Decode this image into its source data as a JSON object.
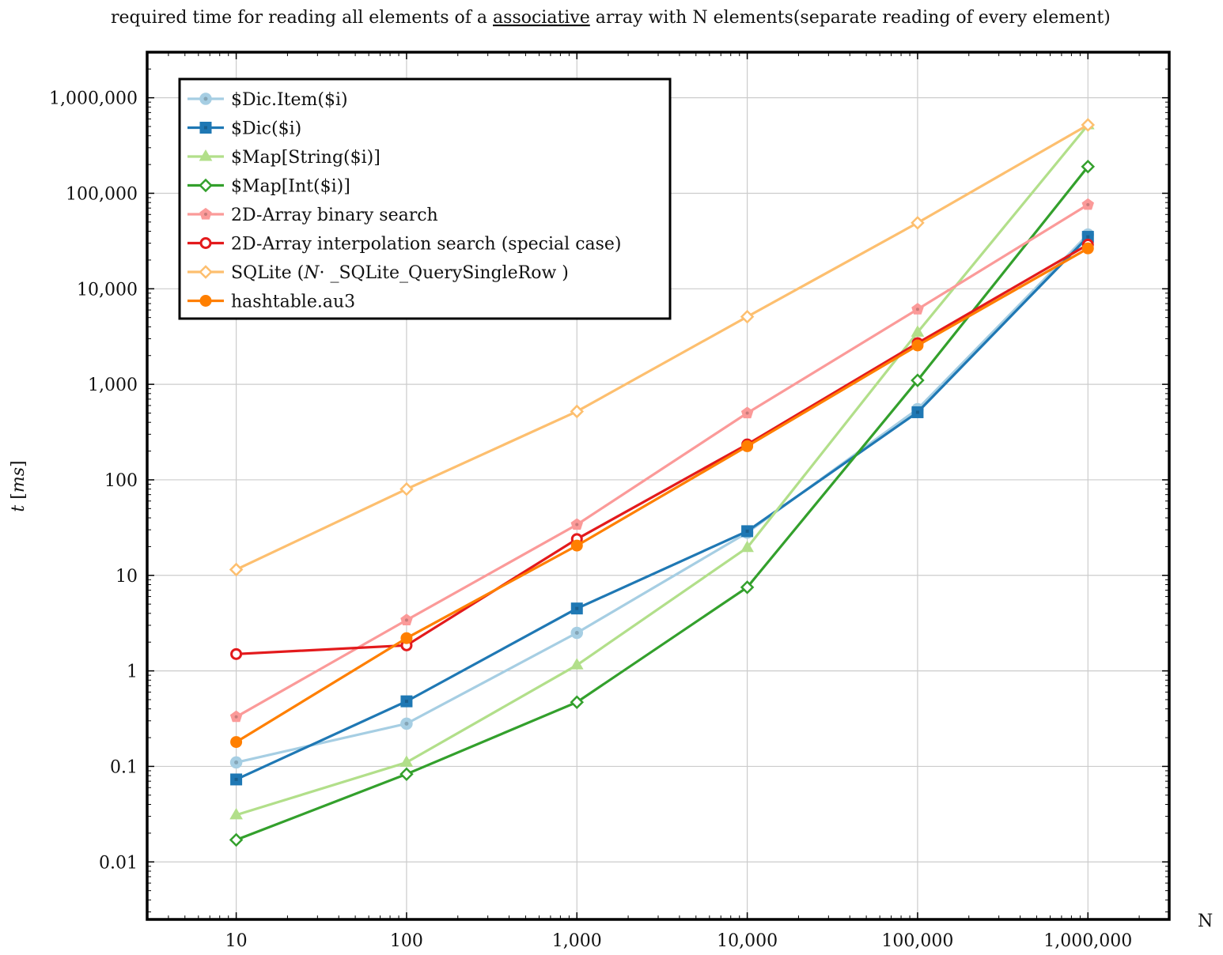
{
  "chart_data": {
    "type": "line",
    "title": {
      "before": "required time for reading all elements of a ",
      "underlined": "associative",
      "after": " array with N elements(separate reading of every element)"
    },
    "xlabel": "N",
    "ylabel_italic_t": "t",
    "ylabel_open": " [",
    "ylabel_italic_ms": "ms",
    "ylabel_close": "]",
    "x_scale": "log",
    "y_scale": "log",
    "xlim": [
      3,
      3000000
    ],
    "ylim": [
      0.0025,
      3000000
    ],
    "x_ticks": [
      10,
      100,
      1000,
      10000,
      100000,
      1000000
    ],
    "x_tick_labels": [
      "10",
      "100",
      "1,000",
      "10,000",
      "100,000",
      "1,000,000"
    ],
    "y_ticks": [
      0.01,
      0.1,
      1,
      10,
      100,
      1000,
      10000,
      100000,
      1000000
    ],
    "y_tick_labels": [
      "0.01",
      "0.1",
      "1",
      "10",
      "100",
      "1,000",
      "10,000",
      "100,000",
      "1,000,000"
    ],
    "grid": true,
    "legend_position": "top-left",
    "series": [
      {
        "name": "$Dic.Item($i)",
        "color": "#a6cee3",
        "marker": "circle-dot",
        "x": [
          10,
          100,
          1000,
          10000,
          100000,
          1000000
        ],
        "y": [
          0.11,
          0.28,
          2.5,
          28,
          550,
          37000
        ]
      },
      {
        "name": "$Dic($i)",
        "color": "#1f78b4",
        "marker": "square",
        "x": [
          10,
          100,
          1000,
          10000,
          100000,
          1000000
        ],
        "y": [
          0.073,
          0.48,
          4.5,
          29,
          510,
          35000
        ]
      },
      {
        "name": "$Map[String($i)]",
        "color": "#b2df8a",
        "marker": "triangle",
        "x": [
          10,
          100,
          1000,
          10000,
          100000,
          1000000
        ],
        "y": [
          0.031,
          0.11,
          1.15,
          19.5,
          3500,
          520000
        ]
      },
      {
        "name": "$Map[Int($i)]",
        "color": "#33a02c",
        "marker": "diamond-open",
        "x": [
          10,
          100,
          1000,
          10000,
          100000,
          1000000
        ],
        "y": [
          0.017,
          0.083,
          0.47,
          7.5,
          1100,
          190000
        ]
      },
      {
        "name": "2D-Array binary search",
        "color": "#fb9a99",
        "marker": "pentagon",
        "x": [
          10,
          100,
          1000,
          10000,
          100000,
          1000000
        ],
        "y": [
          0.33,
          3.4,
          34,
          500,
          6100,
          76000
        ]
      },
      {
        "name": "2D-Array interpolation search (special case)",
        "color": "#e31a1c",
        "marker": "circle-open",
        "x": [
          10,
          100,
          1000,
          10000,
          100000,
          1000000
        ],
        "y": [
          1.5,
          1.85,
          24,
          235,
          2700,
          29000
        ]
      },
      {
        "name_prefix": "SQLite (",
        "name_italic": "N",
        "name_suffix": "·  _SQLite_QuerySingleRow )",
        "color": "#fdbf6f",
        "marker": "diamond-open",
        "x": [
          10,
          100,
          1000,
          10000,
          100000,
          1000000
        ],
        "y": [
          11.5,
          80,
          520,
          5100,
          49000,
          520000
        ]
      },
      {
        "name": "hashtable.au3",
        "color": "#ff7f00",
        "marker": "circle-filled",
        "x": [
          10,
          100,
          1000,
          10000,
          100000,
          1000000
        ],
        "y": [
          0.18,
          2.2,
          20.5,
          225,
          2550,
          26500
        ]
      }
    ]
  }
}
